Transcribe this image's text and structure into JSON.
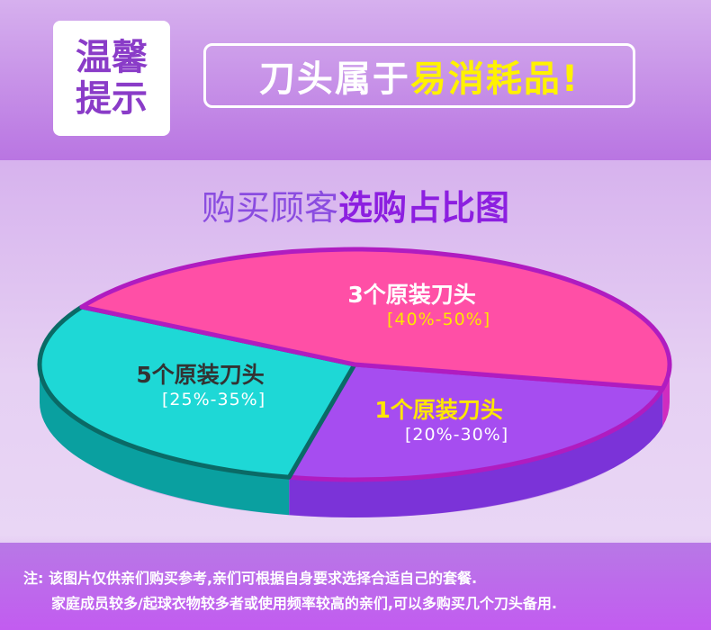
{
  "header": {
    "badge_line1": "温馨",
    "badge_line2": "提示",
    "headline_white": "刀头属于",
    "headline_yellow": "易消耗品!"
  },
  "chart_data": {
    "type": "pie",
    "title_part1": "购买顾客",
    "title_part2": "选购占比图",
    "style": "3d",
    "slices": [
      {
        "label": "3个原装刀头",
        "range": "[40%-50%]",
        "min": 40,
        "max": 50,
        "color": "#ff4fa6"
      },
      {
        "label": "1个原装刀头",
        "range": "[20%-30%]",
        "min": 20,
        "max": 30,
        "color": "#a64df0"
      },
      {
        "label": "5个原装刀头",
        "range": "[25%-35%]",
        "min": 25,
        "max": 35,
        "color": "#1ed8d6"
      }
    ]
  },
  "note": {
    "line1": "注: 该图片仅供亲们购买参考,亲们可根据自身要求选择合适自己的套餐.",
    "line2": "家庭成员较多/起球衣物较多者或使用频率较高的亲们,可以多购买几个刀头备用."
  }
}
